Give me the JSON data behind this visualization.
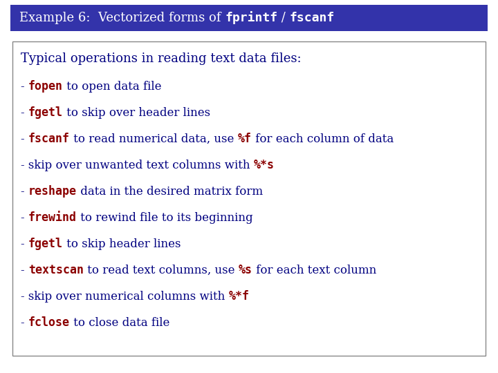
{
  "title_normal": "Example 6:  Vectorized forms of ",
  "title_bold1": "fprintf",
  "title_sep": " / ",
  "title_bold2": "fscanf",
  "title_bg": "#3333AA",
  "title_fg": "#FFFFFF",
  "header_text": "Typical operations in reading text data files:",
  "header_color": "#000080",
  "fig_bg": "#FFFFFF",
  "box_edge_color": "#888888",
  "normal_color": "#000080",
  "code_color": "#8B0000",
  "title_fontsize": 13,
  "header_fontsize": 13,
  "line_fontsize": 12,
  "lines": [
    [
      {
        "t": "- ",
        "code": false
      },
      {
        "t": "fopen",
        "code": true
      },
      {
        "t": " to open data file",
        "code": false
      }
    ],
    [
      {
        "t": "- ",
        "code": false
      },
      {
        "t": "fgetl",
        "code": true
      },
      {
        "t": " to skip over header lines",
        "code": false
      }
    ],
    [
      {
        "t": "- ",
        "code": false
      },
      {
        "t": "fscanf",
        "code": true
      },
      {
        "t": " to read numerical data, use ",
        "code": false
      },
      {
        "t": "%f",
        "code": true
      },
      {
        "t": " for each column of data",
        "code": false
      }
    ],
    [
      {
        "t": "- skip over unwanted text columns with ",
        "code": false
      },
      {
        "t": "%*s",
        "code": true
      }
    ],
    [
      {
        "t": "- ",
        "code": false
      },
      {
        "t": "reshape",
        "code": true
      },
      {
        "t": " data in the desired matrix form",
        "code": false
      }
    ],
    [
      {
        "t": "- ",
        "code": false
      },
      {
        "t": "frewind",
        "code": true
      },
      {
        "t": " to rewind file to its beginning",
        "code": false
      }
    ],
    [
      {
        "t": "- ",
        "code": false
      },
      {
        "t": "fgetl",
        "code": true
      },
      {
        "t": " to skip header lines",
        "code": false
      }
    ],
    [
      {
        "t": "- ",
        "code": false
      },
      {
        "t": "textscan",
        "code": true
      },
      {
        "t": " to read text columns, use ",
        "code": false
      },
      {
        "t": "%s",
        "code": true
      },
      {
        "t": " for each text column",
        "code": false
      }
    ],
    [
      {
        "t": "- skip over numerical columns with ",
        "code": false
      },
      {
        "t": "%*f",
        "code": true
      }
    ],
    [
      {
        "t": "- ",
        "code": false
      },
      {
        "t": "fclose",
        "code": true
      },
      {
        "t": " to close data file",
        "code": false
      }
    ]
  ]
}
